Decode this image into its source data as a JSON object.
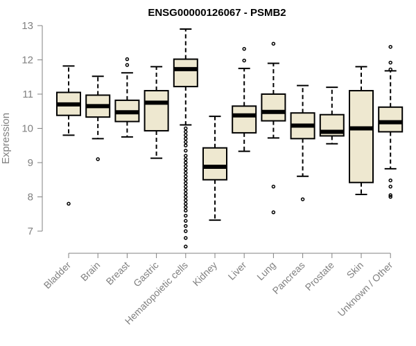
{
  "chart_data": {
    "type": "boxplot",
    "title": "ENSG00000126067 - PSMB2",
    "ylabel": "Expression",
    "ylim": [
      6.5,
      13.0
    ],
    "yticks": [
      7,
      8,
      9,
      10,
      11,
      12,
      13
    ],
    "box_fill": "#EEE8D0",
    "categories": [
      "Bladder",
      "Brain",
      "Breast",
      "Gastric",
      "Hematopoietic cells",
      "Kidney",
      "Liver",
      "Lung",
      "Pancreas",
      "Prostate",
      "Skin",
      "Unknown / Other"
    ],
    "boxes": [
      {
        "lower_whisker": 9.8,
        "q1": 10.38,
        "median": 10.7,
        "q3": 11.05,
        "upper_whisker": 11.82,
        "outliers": [
          7.8
        ]
      },
      {
        "lower_whisker": 9.7,
        "q1": 10.33,
        "median": 10.65,
        "q3": 10.97,
        "upper_whisker": 11.52,
        "outliers": [
          9.1
        ]
      },
      {
        "lower_whisker": 9.75,
        "q1": 10.2,
        "median": 10.47,
        "q3": 10.82,
        "upper_whisker": 11.62,
        "outliers": [
          11.85,
          12.02
        ]
      },
      {
        "lower_whisker": 9.13,
        "q1": 9.93,
        "median": 10.75,
        "q3": 11.1,
        "upper_whisker": 11.8,
        "outliers": []
      },
      {
        "lower_whisker": 10.1,
        "q1": 11.22,
        "median": 11.73,
        "q3": 12.02,
        "upper_whisker": 12.9,
        "outliers": [
          6.55,
          6.8,
          7.0,
          7.15,
          7.3,
          7.45,
          7.6,
          7.7,
          7.8,
          7.9,
          8.0,
          8.1,
          8.2,
          8.3,
          8.4,
          8.5,
          8.6,
          8.7,
          8.8,
          8.9,
          9.0,
          9.1,
          9.2,
          9.35,
          9.5,
          9.6,
          9.7,
          9.8,
          9.9,
          10.0
        ]
      },
      {
        "lower_whisker": 7.32,
        "q1": 8.5,
        "median": 8.88,
        "q3": 9.43,
        "upper_whisker": 10.35,
        "outliers": []
      },
      {
        "lower_whisker": 9.33,
        "q1": 9.87,
        "median": 10.38,
        "q3": 10.65,
        "upper_whisker": 11.75,
        "outliers": [
          11.98,
          12.32
        ]
      },
      {
        "lower_whisker": 9.72,
        "q1": 10.22,
        "median": 10.48,
        "q3": 11.0,
        "upper_whisker": 11.9,
        "outliers": [
          7.55,
          8.3,
          12.47
        ]
      },
      {
        "lower_whisker": 8.6,
        "q1": 9.7,
        "median": 10.08,
        "q3": 10.45,
        "upper_whisker": 11.25,
        "outliers": [
          7.93
        ]
      },
      {
        "lower_whisker": 9.55,
        "q1": 9.78,
        "median": 9.9,
        "q3": 10.4,
        "upper_whisker": 11.2,
        "outliers": []
      },
      {
        "lower_whisker": 8.07,
        "q1": 8.42,
        "median": 10.0,
        "q3": 11.1,
        "upper_whisker": 11.8,
        "outliers": []
      },
      {
        "lower_whisker": 8.82,
        "q1": 9.9,
        "median": 10.18,
        "q3": 10.62,
        "upper_whisker": 11.68,
        "outliers": [
          8.0,
          8.05,
          8.3,
          8.48,
          11.72,
          11.92,
          12.38
        ]
      }
    ]
  }
}
